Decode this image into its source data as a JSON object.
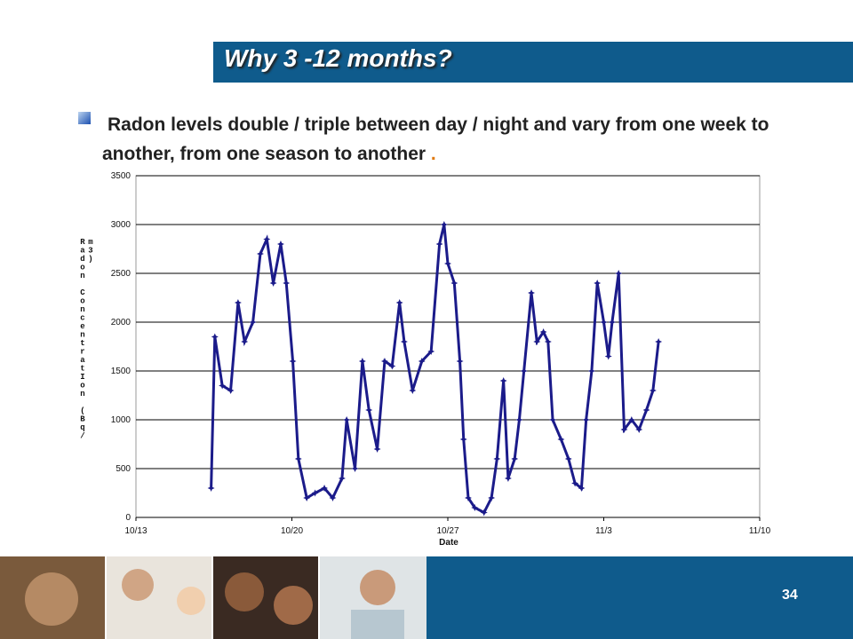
{
  "title": "Why 3 -12 months?",
  "bullet": "Radon levels double / triple between day / night and vary from one week to another, from one season to another",
  "bullet_end": ".",
  "page_number": "34",
  "chart_data": {
    "type": "line",
    "x_label": "Date",
    "y_label": "Radon ConcentratIon (Bq/ m3)",
    "xlim": [
      "10/13",
      "11/10"
    ],
    "xticks": [
      "10/13",
      "10/20",
      "10/27",
      "11/3",
      "11/10"
    ],
    "ylim": [
      0,
      3500
    ],
    "yticks": [
      0,
      500,
      1000,
      1500,
      2000,
      2500,
      3000,
      3500
    ],
    "grid": true,
    "x": [
      "10/16 09:00",
      "10/16 13:00",
      "10/16 21:00",
      "10/17 06:00",
      "10/17 14:00",
      "10/17 21:00",
      "10/18 06:00",
      "10/18 14:00",
      "10/18 21:00",
      "10/19 04:00",
      "10/19 12:00",
      "10/19 18:00",
      "10/20 01:00",
      "10/20 07:00",
      "10/20 16:00",
      "10/21 01:00",
      "10/21 11:00",
      "10/21 20:00",
      "10/22 06:00",
      "10/22 11:00",
      "10/22 20:00",
      "10/23 04:00",
      "10/23 11:00",
      "10/23 20:00",
      "10/24 04:00",
      "10/24 12:00",
      "10/24 20:00",
      "10/25 01:00",
      "10/25 10:00",
      "10/25 20:00",
      "10/26 06:00",
      "10/26 15:00",
      "10/26 20:00",
      "10/27 00:00",
      "10/27 07:00",
      "10/27 13:00",
      "10/27 17:00",
      "10/27 22:00",
      "10/28 05:00",
      "10/28 15:00",
      "10/28 23:00",
      "10/29 05:00",
      "10/29 12:00",
      "10/29 17:00",
      "10/30 00:00",
      "10/30 05:00",
      "10/30 10:00",
      "10/30 18:00",
      "10/31 00:00",
      "10/31 07:00",
      "10/31 12:00",
      "10/31 17:00",
      "11/1 02:00",
      "11/1 10:00",
      "11/1 17:00",
      "11/2 00:00",
      "11/2 05:00",
      "11/2 11:00",
      "11/2 17:00",
      "11/3 00:00",
      "11/3 05:00",
      "11/3 09:00",
      "11/3 16:00",
      "11/3 22:00",
      "11/4 06:00",
      "11/4 14:00",
      "11/4 22:00",
      "11/5 05:00",
      "11/5 11:00"
    ],
    "series": [
      {
        "color": "#1b1b8a",
        "values": [
          300,
          1850,
          1350,
          1300,
          2200,
          1800,
          2000,
          2700,
          2850,
          2400,
          2800,
          2400,
          1600,
          600,
          200,
          250,
          300,
          200,
          400,
          1000,
          500,
          1600,
          1100,
          700,
          1600,
          1550,
          2200,
          1800,
          1300,
          1600,
          1700,
          2800,
          3000,
          2600,
          2400,
          1600,
          800,
          200,
          100,
          50,
          200,
          600,
          1400,
          400,
          600,
          1000,
          1500,
          2300,
          1800,
          1900,
          1800,
          1000,
          800,
          600,
          350,
          300,
          1000,
          1500,
          2400,
          2000,
          1650,
          2000,
          2500,
          900,
          1000,
          900,
          1100,
          1300,
          1800
        ]
      }
    ]
  }
}
